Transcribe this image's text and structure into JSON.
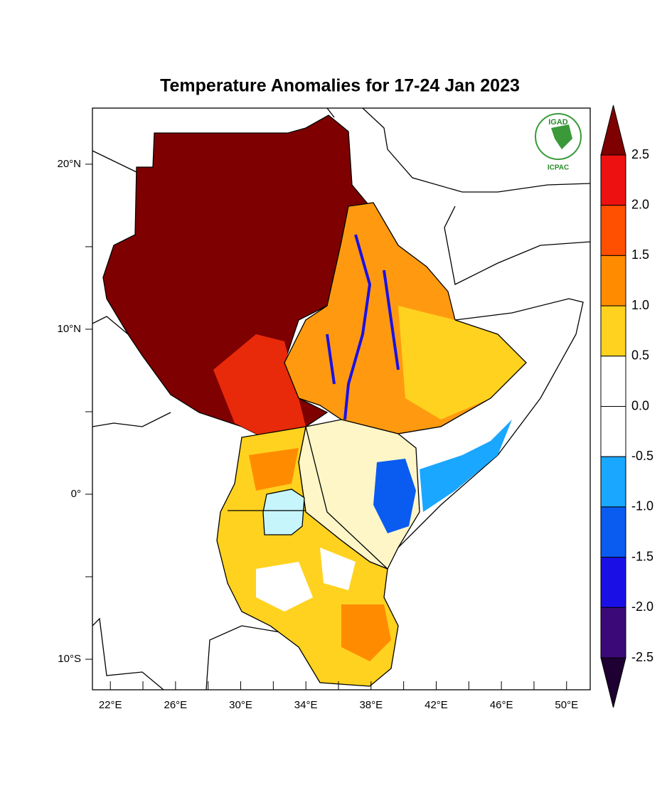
{
  "chart_data": {
    "type": "map",
    "title": "Temperature Anomalies for 17-24 Jan 2023",
    "logo": {
      "top": "IGAD",
      "bottom": "ICPAC"
    },
    "xlim": [
      20.9,
      51.45
    ],
    "ylim": [
      -11.85,
      23.4
    ],
    "xticks": [
      {
        "value": 22,
        "label": "22°E"
      },
      {
        "value": 26,
        "label": "26°E"
      },
      {
        "value": 30,
        "label": "30°E"
      },
      {
        "value": 34,
        "label": "34°E"
      },
      {
        "value": 38,
        "label": "38°E"
      },
      {
        "value": 42,
        "label": "42°E"
      },
      {
        "value": 46,
        "label": "46°E"
      },
      {
        "value": 50,
        "label": "50°E"
      }
    ],
    "xminor": [
      24,
      28,
      32,
      36,
      40,
      44,
      48
    ],
    "yticks": [
      {
        "value": 20,
        "label": "20°N"
      },
      {
        "value": 10,
        "label": "10°N"
      },
      {
        "value": 0,
        "label": "0°"
      },
      {
        "value": -10,
        "label": "10°S"
      }
    ],
    "yminor": [
      15,
      5,
      -5
    ],
    "colorbar": {
      "levels": [
        {
          "value": 2.5,
          "label": "2.5"
        },
        {
          "value": 2.0,
          "label": "2.0"
        },
        {
          "value": 1.5,
          "label": "1.5"
        },
        {
          "value": 1.0,
          "label": "1.0"
        },
        {
          "value": 0.5,
          "label": "0.5"
        },
        {
          "value": 0.0,
          "label": "0.0"
        },
        {
          "value": -0.5,
          "label": "-0.5"
        },
        {
          "value": -1.0,
          "label": "-1.0"
        },
        {
          "value": -1.5,
          "label": "-1.5"
        },
        {
          "value": -2.0,
          "label": "-2.0"
        },
        {
          "value": -2.5,
          "label": "-2.5"
        }
      ],
      "colors": [
        "#7f0000",
        "#ee1111",
        "#ff4f00",
        "#ff8c00",
        "#ffd21f",
        "#ffffff",
        "#ffffff",
        "#1aa7ff",
        "#0a5cf0",
        "#1a10e6",
        "#3c0a78",
        "#1e0032"
      ]
    }
  }
}
